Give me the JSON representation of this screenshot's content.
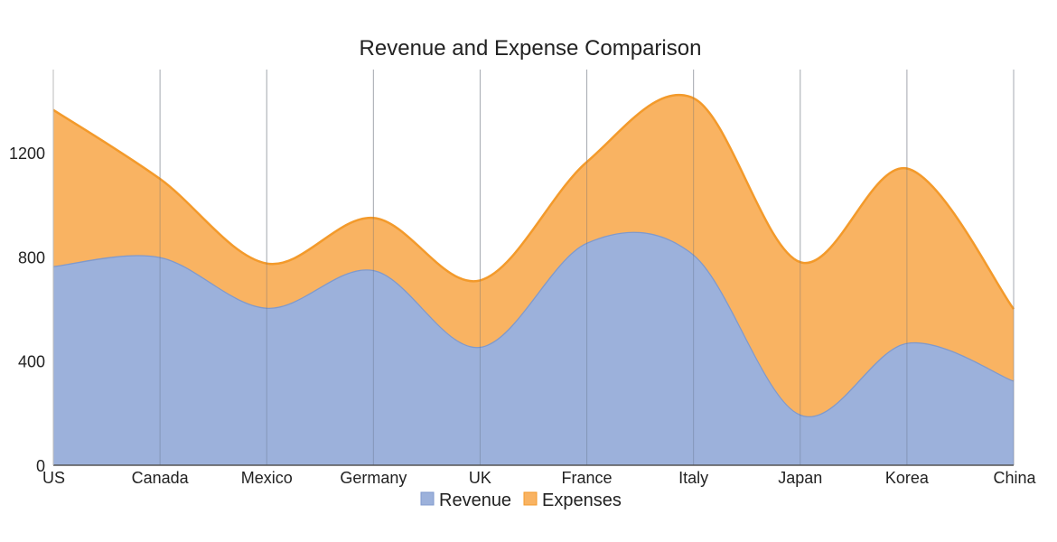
{
  "chart_data": {
    "type": "area",
    "stacked": true,
    "smooth": true,
    "title": "Revenue and Expense Comparison",
    "xlabel": "",
    "ylabel": "",
    "categories": [
      "US",
      "Canada",
      "Mexico",
      "Germany",
      "UK",
      "France",
      "Italy",
      "Japan",
      "Korea",
      "China"
    ],
    "series": [
      {
        "name": "Revenue",
        "values": [
          765,
          800,
          605,
          750,
          455,
          855,
          810,
          195,
          470,
          325
        ],
        "color": "#9cb1db",
        "stroke": "#7f99cc"
      },
      {
        "name": "Expenses",
        "values": [
          600,
          300,
          170,
          200,
          255,
          310,
          600,
          585,
          670,
          275
        ],
        "color": "#f9b362",
        "stroke": "#f39a2b"
      }
    ],
    "y_ticks": [
      "0",
      "400",
      "800",
      "1200"
    ],
    "ylim": [
      0,
      1520
    ],
    "grid": "vertical",
    "legend_position": "bottom"
  }
}
